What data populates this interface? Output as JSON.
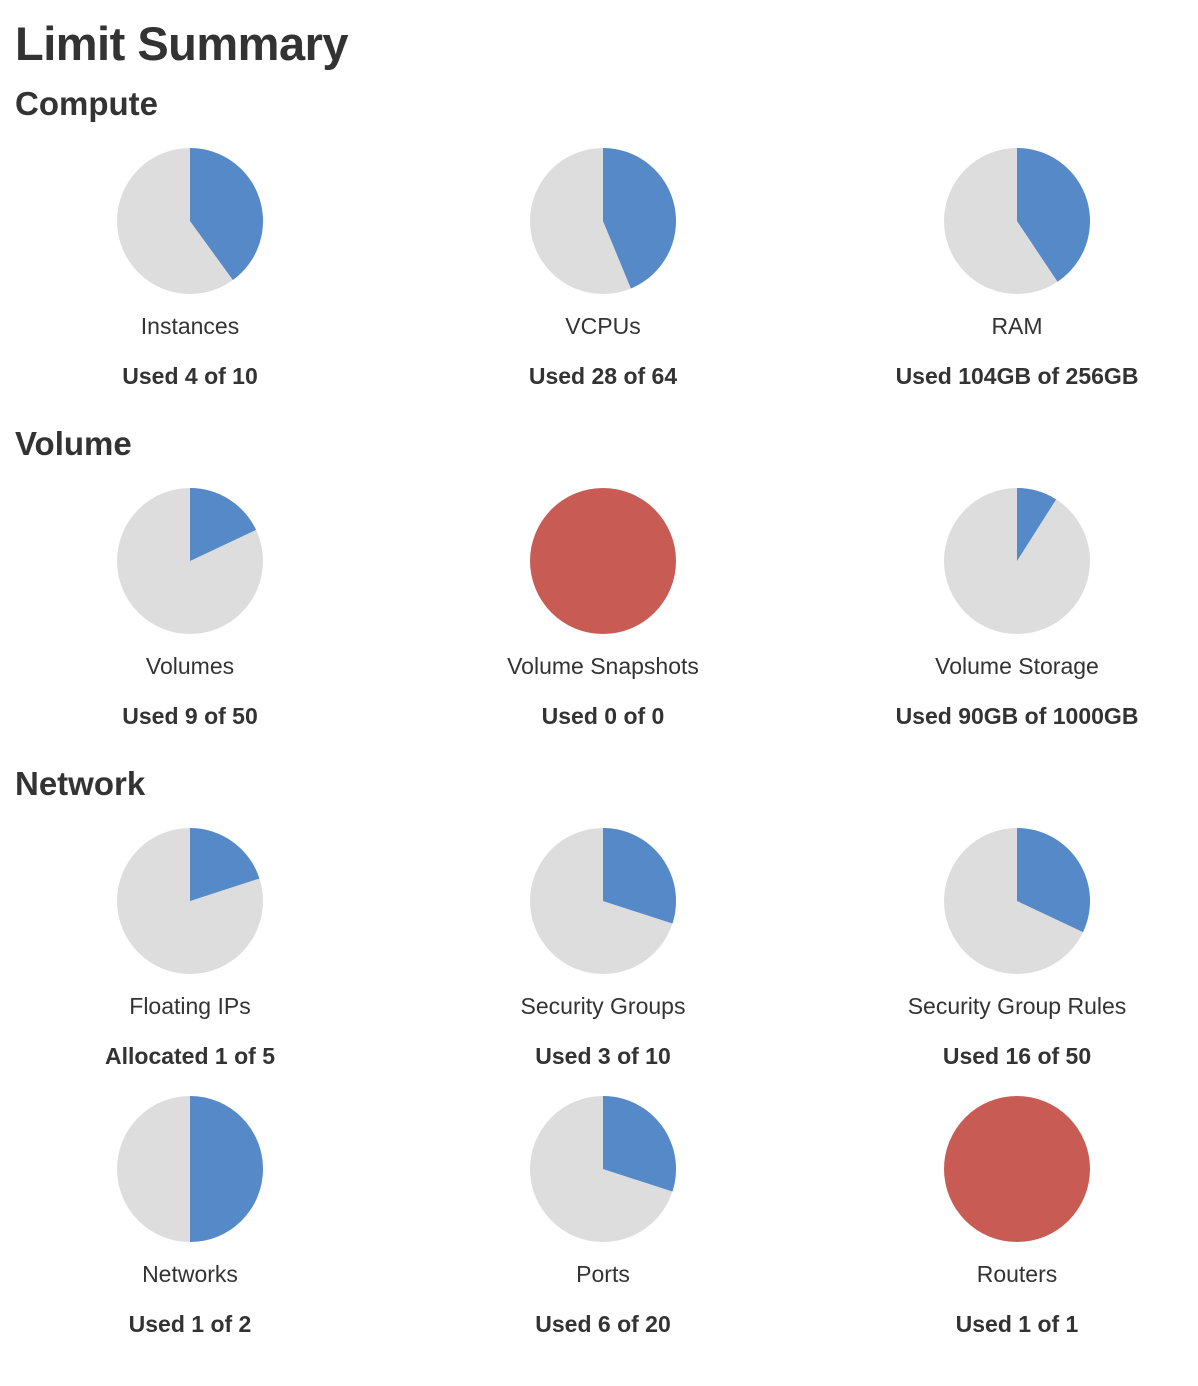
{
  "page": {
    "title": "Limit Summary"
  },
  "colors": {
    "used": "#5589c7",
    "free": "#dddddd",
    "full": "#c85c55",
    "text": "#333333"
  },
  "sections": [
    {
      "title": "Compute",
      "quotas": [
        {
          "label": "Instances",
          "usage_text": "Used 4 of 10",
          "used": 4,
          "total": 10
        },
        {
          "label": "VCPUs",
          "usage_text": "Used 28 of 64",
          "used": 28,
          "total": 64
        },
        {
          "label": "RAM",
          "usage_text": "Used 104GB of 256GB",
          "used": 104,
          "total": 256
        }
      ]
    },
    {
      "title": "Volume",
      "quotas": [
        {
          "label": "Volumes",
          "usage_text": "Used 9 of 50",
          "used": 9,
          "total": 50
        },
        {
          "label": "Volume Snapshots",
          "usage_text": "Used 0 of 0",
          "used": 0,
          "total": 0
        },
        {
          "label": "Volume Storage",
          "usage_text": "Used 90GB of 1000GB",
          "used": 90,
          "total": 1000
        }
      ]
    },
    {
      "title": "Network",
      "quotas": [
        {
          "label": "Floating IPs",
          "usage_text": "Allocated 1 of 5",
          "used": 1,
          "total": 5
        },
        {
          "label": "Security Groups",
          "usage_text": "Used 3 of 10",
          "used": 3,
          "total": 10
        },
        {
          "label": "Security Group Rules",
          "usage_text": "Used 16 of 50",
          "used": 16,
          "total": 50
        },
        {
          "label": "Networks",
          "usage_text": "Used 1 of 2",
          "used": 1,
          "total": 2
        },
        {
          "label": "Ports",
          "usage_text": "Used 6 of 20",
          "used": 6,
          "total": 20
        },
        {
          "label": "Routers",
          "usage_text": "Used 1 of 1",
          "used": 1,
          "total": 1
        }
      ]
    }
  ]
}
